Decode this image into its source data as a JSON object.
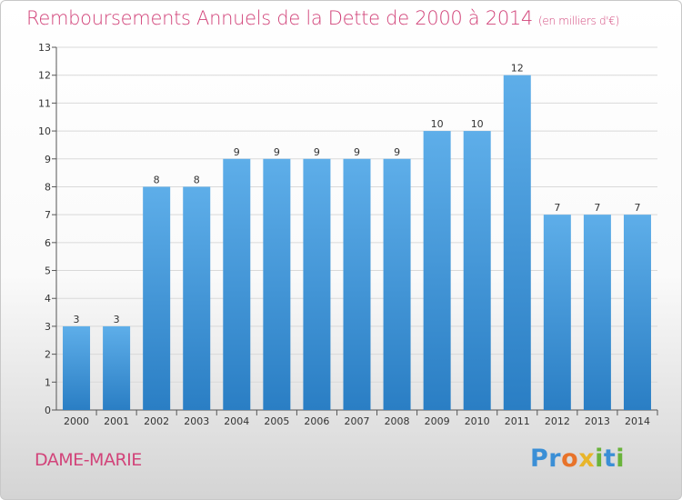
{
  "title": "Remboursements Annuels de la Dette de 2000 à 2014",
  "unit": "(en milliers d'€)",
  "commune": "DAME-MARIE",
  "logo": {
    "text": "Proxiti",
    "letters": [
      {
        "ch": "P",
        "color": "#3b8fd6"
      },
      {
        "ch": "r",
        "color": "#3b8fd6"
      },
      {
        "ch": "o",
        "color": "#e8732a"
      },
      {
        "ch": "x",
        "color": "#e8b52a"
      },
      {
        "ch": "i",
        "color": "#69b33a"
      },
      {
        "ch": "t",
        "color": "#3b8fd6"
      },
      {
        "ch": "i",
        "color": "#69b33a"
      }
    ]
  },
  "colors": {
    "title": "#d2447a",
    "bar_top": "#5eaee9",
    "bar_bottom": "#2a7ec4",
    "grid": "#d9d9d9"
  },
  "chart_data": {
    "type": "bar",
    "title": "Remboursements Annuels de la Dette de 2000 à 2014",
    "xlabel": "",
    "ylabel": "",
    "categories": [
      "2000",
      "2001",
      "2002",
      "2003",
      "2004",
      "2005",
      "2006",
      "2007",
      "2008",
      "2009",
      "2010",
      "2011",
      "2012",
      "2013",
      "2014"
    ],
    "values": [
      3,
      3,
      8,
      8,
      9,
      9,
      9,
      9,
      9,
      10,
      10,
      12,
      7,
      7,
      7
    ],
    "ylim": [
      0,
      13
    ],
    "yticks": [
      "0",
      "1",
      "2",
      "3",
      "4",
      "5",
      "6",
      "7",
      "8",
      "9",
      "10",
      "11",
      "12",
      "13"
    ],
    "grid": true
  }
}
